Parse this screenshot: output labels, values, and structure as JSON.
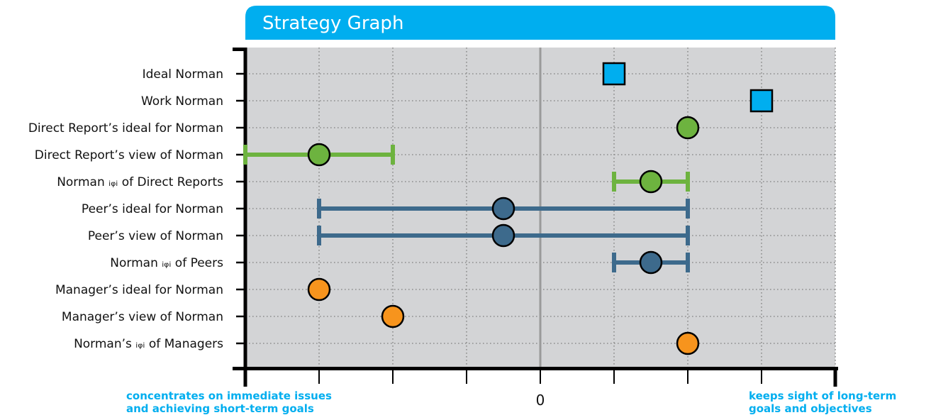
{
  "chart_data": {
    "type": "scatter",
    "title": "Strategy Graph",
    "x_zero_label": "0",
    "left_caption": [
      "concentrates on immediate issues",
      "and achieving short-term goals"
    ],
    "right_caption": [
      "keeps sight of long-term",
      "goals and objectives"
    ],
    "xlim": [
      -4,
      4
    ],
    "grid": true,
    "colors": {
      "title_bar": "#00aeef",
      "plot_bg": "#d3d4d6",
      "blue": "#00aeef",
      "green": "#6db33f",
      "navy": "#3d6a8c",
      "orange": "#f7941d",
      "axis": "#000000"
    },
    "rows": [
      {
        "label": "Ideal Norman",
        "value": 1,
        "marker": "square",
        "color": "blue"
      },
      {
        "label": "Work Norman",
        "value": 3,
        "marker": "square",
        "color": "blue"
      },
      {
        "label": "Direct Report’s ideal for Norman",
        "value": 2,
        "marker": "circle",
        "color": "green"
      },
      {
        "label": "Direct Report’s view of Norman",
        "value": -3,
        "range": [
          -4,
          -2
        ],
        "marker": "circle",
        "color": "green"
      },
      {
        "label": "Norman ᵢᵩᵢ of Direct Reports",
        "value": 1.5,
        "range": [
          1,
          2
        ],
        "marker": "circle",
        "color": "green"
      },
      {
        "label": "Peer’s ideal for Norman",
        "value": -0.5,
        "range": [
          -3,
          2
        ],
        "marker": "circle",
        "color": "navy"
      },
      {
        "label": "Peer’s view of Norman",
        "value": -0.5,
        "range": [
          -3,
          2
        ],
        "marker": "circle",
        "color": "navy"
      },
      {
        "label": "Norman ᵢᵩᵢ of Peers",
        "value": 1.5,
        "range": [
          1,
          2
        ],
        "marker": "circle",
        "color": "navy"
      },
      {
        "label": "Manager’s ideal for Norman",
        "value": -3,
        "marker": "circle",
        "color": "orange"
      },
      {
        "label": "Manager’s view of Norman",
        "value": -2,
        "marker": "circle",
        "color": "orange"
      },
      {
        "label": "Norman’s ᵢᵩᵢ of Managers",
        "value": 2,
        "marker": "circle",
        "color": "orange"
      }
    ]
  }
}
